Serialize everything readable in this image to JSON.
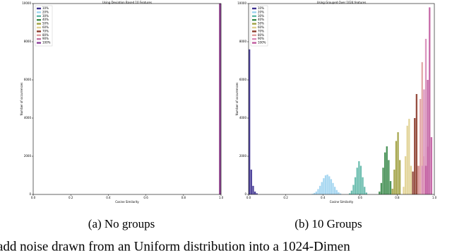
{
  "chart_data": [
    {
      "type": "histogram",
      "title": "Using Deviation Based 10 Features",
      "xlabel": "Cosine Similarity",
      "ylabel": "Number of occurrences",
      "xlim": [
        0,
        1
      ],
      "xticks": [
        {
          "value": 0,
          "label": "0.0"
        },
        0.2,
        0.4,
        0.6,
        0.8,
        {
          "value": 1,
          "label": "1.0"
        }
      ],
      "ylim": [
        0,
        10000
      ],
      "yticks": [
        0,
        2000,
        4000,
        6000,
        8000,
        10000
      ],
      "legend": "upper left",
      "series": [
        {
          "name": "10%",
          "color": "#3b2f8f",
          "bins": [
            0.99,
            1
          ],
          "counts": [
            10000
          ]
        },
        {
          "name": "20%",
          "color": "#9dd3ef",
          "bins": [
            0.99,
            1
          ],
          "counts": [
            10000
          ]
        },
        {
          "name": "30%",
          "color": "#5fb8a8",
          "bins": [
            0.99,
            1
          ],
          "counts": [
            10000
          ]
        },
        {
          "name": "40%",
          "color": "#3a8a4a",
          "bins": [
            0.99,
            1
          ],
          "counts": [
            10000
          ]
        },
        {
          "name": "50%",
          "color": "#a0a040",
          "bins": [
            0.99,
            1
          ],
          "counts": [
            10000
          ]
        },
        {
          "name": "60%",
          "color": "#e0d090",
          "bins": [
            0.99,
            1
          ],
          "counts": [
            10000
          ]
        },
        {
          "name": "70%",
          "color": "#8b3a2a",
          "bins": [
            0.99,
            1
          ],
          "counts": [
            10000
          ]
        },
        {
          "name": "80%",
          "color": "#e0a0a0",
          "bins": [
            0.99,
            1
          ],
          "counts": [
            10000
          ]
        },
        {
          "name": "90%",
          "color": "#c070a0",
          "bins": [
            0.99,
            1
          ],
          "counts": [
            10000
          ]
        },
        {
          "name": "100%",
          "color": "#8a3c98",
          "bins": [
            0.99,
            1
          ],
          "counts": [
            10000
          ]
        }
      ]
    },
    {
      "type": "histogram",
      "title": "Using Grouped Over 1024 features",
      "xlabel": "Cosine Similarity",
      "ylabel": "Number of occurrences",
      "xlim": [
        0,
        1
      ],
      "xticks": [
        {
          "value": 0,
          "label": "0.0"
        },
        0.2,
        0.4,
        0.6,
        0.8,
        {
          "value": 1,
          "label": "1.0"
        }
      ],
      "ylim": [
        0,
        10000
      ],
      "yticks": [
        0,
        2000,
        4000,
        6000,
        8000,
        10000
      ],
      "legend": "upper left",
      "series": [
        {
          "name": "10%",
          "color": "#3b2f8f",
          "bins": [
            0,
            0.01,
            0.02,
            0.03,
            0.04,
            0.05
          ],
          "counts": [
            7600,
            1300,
            450,
            150,
            60
          ]
        },
        {
          "name": "20%",
          "color": "#9dd3ef",
          "bins": [
            0.34,
            0.35,
            0.36,
            0.37,
            0.38,
            0.39,
            0.4,
            0.41,
            0.42,
            0.43,
            0.44,
            0.45,
            0.46,
            0.47,
            0.48,
            0.49,
            0.5
          ],
          "counts": [
            30,
            80,
            150,
            280,
            450,
            650,
            850,
            1000,
            1040,
            950,
            800,
            600,
            400,
            230,
            120,
            50
          ]
        },
        {
          "name": "30%",
          "color": "#5fb8a8",
          "bins": [
            0.54,
            0.55,
            0.56,
            0.57,
            0.58,
            0.59,
            0.6,
            0.61,
            0.62,
            0.63,
            0.64
          ],
          "counts": [
            60,
            200,
            500,
            900,
            1400,
            1740,
            1500,
            900,
            400,
            100
          ]
        },
        {
          "name": "40%",
          "color": "#3a8a4a",
          "bins": [
            0.7,
            0.71,
            0.72,
            0.73,
            0.74,
            0.75,
            0.76,
            0.77
          ],
          "counts": [
            150,
            600,
            1400,
            2200,
            2520,
            1800,
            700
          ]
        },
        {
          "name": "50%",
          "color": "#a0a040",
          "bins": [
            0.77,
            0.78,
            0.79,
            0.8,
            0.81,
            0.82
          ],
          "counts": [
            300,
            1300,
            2800,
            3260,
            1800
          ]
        },
        {
          "name": "60%",
          "color": "#e0d090",
          "bins": [
            0.83,
            0.84,
            0.85,
            0.86,
            0.87,
            0.88
          ],
          "counts": [
            400,
            2000,
            3600,
            3960,
            1500
          ]
        },
        {
          "name": "70%",
          "color": "#8b3a2a",
          "bins": [
            0.88,
            0.89,
            0.9,
            0.91,
            0.92
          ],
          "counts": [
            1200,
            4000,
            5260,
            1500
          ]
        },
        {
          "name": "80%",
          "color": "#e0a0a0",
          "bins": [
            0.91,
            0.92,
            0.93,
            0.94,
            0.95
          ],
          "counts": [
            1500,
            5000,
            6930,
            2000
          ]
        },
        {
          "name": "90%",
          "color": "#d88cb8",
          "bins": [
            0.93,
            0.94,
            0.95,
            0.96,
            0.97
          ],
          "counts": [
            1500,
            5500,
            8150,
            2500
          ]
        },
        {
          "name": "100%",
          "color": "#c05a9e",
          "bins": [
            0.95,
            0.96,
            0.97,
            0.98,
            0.99
          ],
          "counts": [
            1500,
            6000,
            9800,
            3000
          ]
        }
      ]
    }
  ],
  "captions": [
    "(a) No groups",
    "(b) 10 Groups"
  ],
  "body_text": "add noise drawn from an Uniform distribution into a 1024-Dimen"
}
